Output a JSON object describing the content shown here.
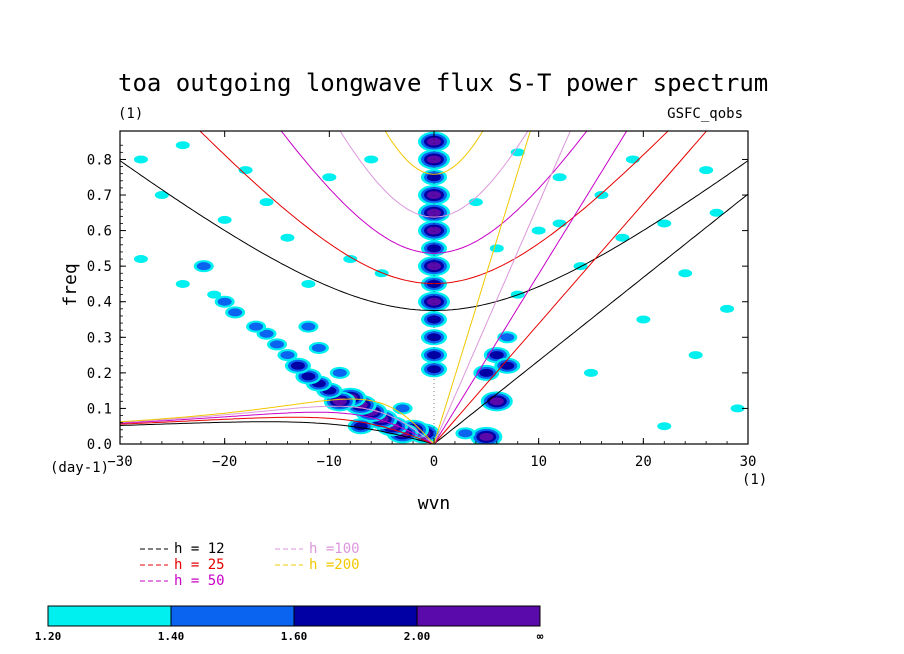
{
  "chart_data": {
    "type": "heatmap",
    "title": "toa outgoing longwave flux S-T power spectrum",
    "subtitle_left": "(1)",
    "subtitle_right": "GSFC_qobs",
    "xlabel": "wvn",
    "ylabel": "freq",
    "x_unit_label": "(1)",
    "y_unit_label": "(day-1)",
    "xlim": [
      -30,
      30
    ],
    "ylim": [
      0,
      0.88
    ],
    "xticks": [
      -30,
      -20,
      -10,
      0,
      10,
      20,
      30
    ],
    "yticks": [
      0.0,
      0.1,
      0.2,
      0.3,
      0.4,
      0.5,
      0.6,
      0.7,
      0.8
    ],
    "xtick_labels": [
      "−30",
      "−20",
      "−10",
      "0",
      "10",
      "20",
      "30"
    ],
    "ytick_labels": [
      "0.0",
      "0.1",
      "0.2",
      "0.3",
      "0.4",
      "0.5",
      "0.6",
      "0.7",
      "0.8"
    ],
    "dispersion_curves": [
      {
        "name": "h = 12",
        "h": 12,
        "color": "#000000"
      },
      {
        "name": "h = 25",
        "h": 25,
        "color": "#e60000"
      },
      {
        "name": "h = 50",
        "h": 50,
        "color": "#c800c8"
      },
      {
        "name": "h =100",
        "h": 100,
        "color": "#dc96dc"
      },
      {
        "name": "h =200",
        "h": 200,
        "color": "#f0c800"
      }
    ],
    "color_levels": [
      {
        "label": "1.20",
        "color": "#00f0f0"
      },
      {
        "label": "1.40",
        "color": "#0a64f0"
      },
      {
        "label": "1.60",
        "color": "#0000a5"
      },
      {
        "label": "2.00",
        "color": "#5a0aaa"
      }
    ],
    "colorbar_end_label": "∞",
    "blobs": [
      {
        "x": 0,
        "y": 0.85,
        "level": 3
      },
      {
        "x": 0,
        "y": 0.8,
        "level": 3
      },
      {
        "x": 0,
        "y": 0.75,
        "level": 2
      },
      {
        "x": 0,
        "y": 0.7,
        "level": 3
      },
      {
        "x": 0,
        "y": 0.65,
        "level": 3
      },
      {
        "x": 0,
        "y": 0.6,
        "level": 3
      },
      {
        "x": 0,
        "y": 0.55,
        "level": 2
      },
      {
        "x": 0,
        "y": 0.5,
        "level": 3
      },
      {
        "x": 0,
        "y": 0.45,
        "level": 2
      },
      {
        "x": 0,
        "y": 0.4,
        "level": 3
      },
      {
        "x": 0,
        "y": 0.35,
        "level": 2
      },
      {
        "x": 0,
        "y": 0.3,
        "level": 2
      },
      {
        "x": 0,
        "y": 0.25,
        "level": 2
      },
      {
        "x": 0,
        "y": 0.21,
        "level": 2
      },
      {
        "x": -1,
        "y": 0.03,
        "level": 3
      },
      {
        "x": -2,
        "y": 0.04,
        "level": 3
      },
      {
        "x": -3,
        "y": 0.03,
        "level": 3
      },
      {
        "x": -4,
        "y": 0.05,
        "level": 3
      },
      {
        "x": -5,
        "y": 0.07,
        "level": 3
      },
      {
        "x": -6,
        "y": 0.09,
        "level": 3
      },
      {
        "x": -7,
        "y": 0.11,
        "level": 3
      },
      {
        "x": -8,
        "y": 0.13,
        "level": 3
      },
      {
        "x": -9,
        "y": 0.12,
        "level": 3
      },
      {
        "x": -10,
        "y": 0.15,
        "level": 2
      },
      {
        "x": -11,
        "y": 0.17,
        "level": 2
      },
      {
        "x": -12,
        "y": 0.19,
        "level": 2
      },
      {
        "x": -13,
        "y": 0.22,
        "level": 2
      },
      {
        "x": -14,
        "y": 0.25,
        "level": 1
      },
      {
        "x": -15,
        "y": 0.28,
        "level": 1
      },
      {
        "x": -16,
        "y": 0.31,
        "level": 1
      },
      {
        "x": -17,
        "y": 0.33,
        "level": 1
      },
      {
        "x": -19,
        "y": 0.37,
        "level": 1
      },
      {
        "x": -20,
        "y": 0.4,
        "level": 1
      },
      {
        "x": -21,
        "y": 0.42,
        "level": 0
      },
      {
        "x": -12,
        "y": 0.33,
        "level": 1
      },
      {
        "x": -11,
        "y": 0.27,
        "level": 1
      },
      {
        "x": -9,
        "y": 0.2,
        "level": 1
      },
      {
        "x": -7,
        "y": 0.05,
        "level": 2
      },
      {
        "x": -3,
        "y": 0.1,
        "level": 1
      },
      {
        "x": 5,
        "y": 0.02,
        "level": 3
      },
      {
        "x": 6,
        "y": 0.12,
        "level": 3
      },
      {
        "x": 5,
        "y": 0.2,
        "level": 2
      },
      {
        "x": 6,
        "y": 0.25,
        "level": 2
      },
      {
        "x": 7,
        "y": 0.3,
        "level": 1
      },
      {
        "x": 7,
        "y": 0.22,
        "level": 2
      },
      {
        "x": 3,
        "y": 0.03,
        "level": 1
      },
      {
        "x": -22,
        "y": 0.5,
        "level": 1
      },
      {
        "x": -24,
        "y": 0.45,
        "level": 0
      },
      {
        "x": -28,
        "y": 0.8,
        "level": 0
      },
      {
        "x": -24,
        "y": 0.84,
        "level": 0
      },
      {
        "x": -18,
        "y": 0.77,
        "level": 0
      },
      {
        "x": -16,
        "y": 0.68,
        "level": 0
      },
      {
        "x": -10,
        "y": 0.75,
        "level": 0
      },
      {
        "x": -6,
        "y": 0.8,
        "level": 0
      },
      {
        "x": -14,
        "y": 0.58,
        "level": 0
      },
      {
        "x": -8,
        "y": 0.52,
        "level": 0
      },
      {
        "x": -5,
        "y": 0.48,
        "level": 0
      },
      {
        "x": -12,
        "y": 0.45,
        "level": 0
      },
      {
        "x": -20,
        "y": 0.63,
        "level": 0
      },
      {
        "x": -26,
        "y": 0.7,
        "level": 0
      },
      {
        "x": -28,
        "y": 0.52,
        "level": 0
      },
      {
        "x": 8,
        "y": 0.82,
        "level": 0
      },
      {
        "x": 12,
        "y": 0.75,
        "level": 0
      },
      {
        "x": 16,
        "y": 0.7,
        "level": 0
      },
      {
        "x": 19,
        "y": 0.8,
        "level": 0
      },
      {
        "x": 22,
        "y": 0.62,
        "level": 0
      },
      {
        "x": 26,
        "y": 0.77,
        "level": 0
      },
      {
        "x": 10,
        "y": 0.6,
        "level": 0
      },
      {
        "x": 14,
        "y": 0.5,
        "level": 0
      },
      {
        "x": 6,
        "y": 0.55,
        "level": 0
      },
      {
        "x": 4,
        "y": 0.68,
        "level": 0
      },
      {
        "x": 18,
        "y": 0.58,
        "level": 0
      },
      {
        "x": 24,
        "y": 0.48,
        "level": 0
      },
      {
        "x": 28,
        "y": 0.38,
        "level": 0
      },
      {
        "x": 20,
        "y": 0.35,
        "level": 0
      },
      {
        "x": 15,
        "y": 0.2,
        "level": 0
      },
      {
        "x": 25,
        "y": 0.25,
        "level": 0
      },
      {
        "x": 12,
        "y": 0.62,
        "level": 0
      },
      {
        "x": 8,
        "y": 0.42,
        "level": 0
      },
      {
        "x": 27,
        "y": 0.65,
        "level": 0
      },
      {
        "x": 29,
        "y": 0.1,
        "level": 0
      },
      {
        "x": 22,
        "y": 0.05,
        "level": 0
      }
    ]
  }
}
